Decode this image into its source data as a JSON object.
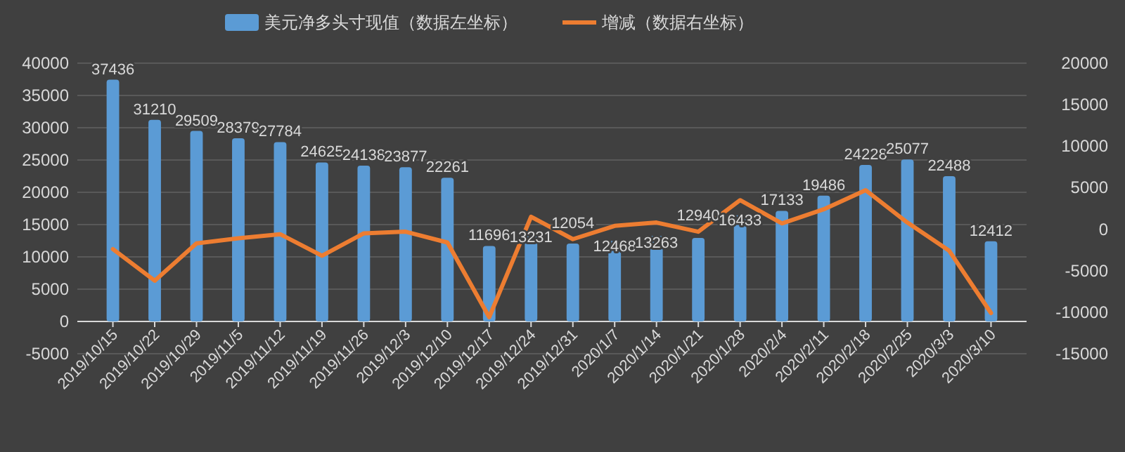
{
  "chart_data": {
    "type": "bar",
    "categories": [
      "2019/10/15",
      "2019/10/22",
      "2019/10/29",
      "2019/11/5",
      "2019/11/12",
      "2019/11/19",
      "2019/11/26",
      "2019/12/3",
      "2019/12/10",
      "2019/12/17",
      "2019/12/24",
      "2019/12/31",
      "2020/1/7",
      "2020/1/14",
      "2020/1/21",
      "2020/1/28",
      "2020/2/4",
      "2020/2/11",
      "2020/2/18",
      "2020/2/25",
      "2020/3/3",
      "2020/3/10"
    ],
    "series": [
      {
        "name": "美元净多头寸现值（数据左坐标）",
        "color": "#5b9bd5",
        "values": [
          37436,
          31210,
          29509,
          28379,
          27784,
          24625,
          24138,
          23877,
          22261,
          11696,
          13231,
          12054,
          12468,
          13263,
          12940,
          16433,
          17133,
          19486,
          24228,
          25077,
          22488,
          12412
        ],
        "value_labels": [
          "37436",
          "31210",
          "29509",
          "28379",
          "27784",
          "24625",
          "24138",
          "23877",
          "22261",
          "11696",
          "13231",
          "12054",
          "12468",
          "13263",
          "12940",
          "16433",
          "17133",
          "19486",
          "24228",
          "25077",
          "22488",
          "12412"
        ]
      },
      {
        "name": "增减（数据右坐标）",
        "type": "line",
        "axis": "y2",
        "color": "#ed7d31",
        "values": [
          -2400,
          -6200,
          -1700,
          -1100,
          -600,
          -3200,
          -500,
          -300,
          -1600,
          -10600,
          1500,
          -1200,
          400,
          800,
          -300,
          3500,
          700,
          2400,
          4700,
          800,
          -2600,
          -10100
        ]
      }
    ],
    "ylim": [
      -5000,
      40000
    ],
    "yticks": [
      -5000,
      0,
      5000,
      10000,
      15000,
      20000,
      25000,
      30000,
      35000,
      40000
    ],
    "y2lim": [
      -15000,
      20000
    ],
    "y2ticks": [
      -15000,
      -10000,
      -5000,
      0,
      5000,
      10000,
      15000,
      20000
    ],
    "grid": "y",
    "legend": "top"
  }
}
